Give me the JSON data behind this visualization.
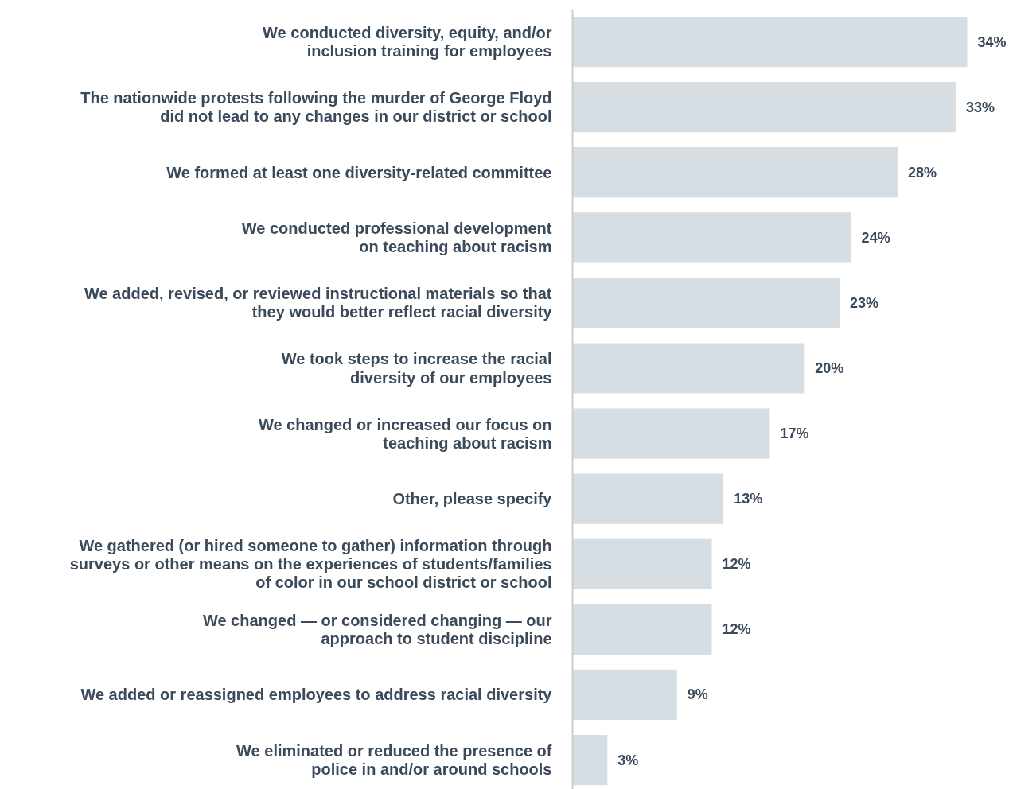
{
  "chart_data": {
    "type": "bar",
    "orientation": "horizontal",
    "categories": [
      "We conducted diversity, equity, and/or\ninclusion training for employees",
      "The nationwide protests following the murder of George Floyd\ndid not lead to any changes in our district or school",
      "We formed at least one diversity-related committee",
      "We conducted professional development\non teaching about racism",
      "We added, revised, or reviewed instructional materials so that\nthey would better reflect racial diversity",
      "We took steps to increase the racial\ndiversity of our employees",
      "We changed or increased our focus on\nteaching about racism",
      "Other, please specify",
      "We gathered (or hired someone to gather) information through\nsurveys or other means on the experiences of students/families\nof color in our school district or school",
      "We changed — or considered changing — our\napproach to student discipline",
      "We added or reassigned employees to address racial diversity",
      "We eliminated or reduced the presence of\npolice in and/or around schools"
    ],
    "values": [
      34,
      33,
      28,
      24,
      23,
      20,
      17,
      13,
      12,
      12,
      9,
      3
    ],
    "value_labels": [
      "34%",
      "33%",
      "28%",
      "24%",
      "23%",
      "20%",
      "17%",
      "13%",
      "12%",
      "12%",
      "9%",
      "3%"
    ],
    "color": "#d6dee3",
    "grid": false
  }
}
